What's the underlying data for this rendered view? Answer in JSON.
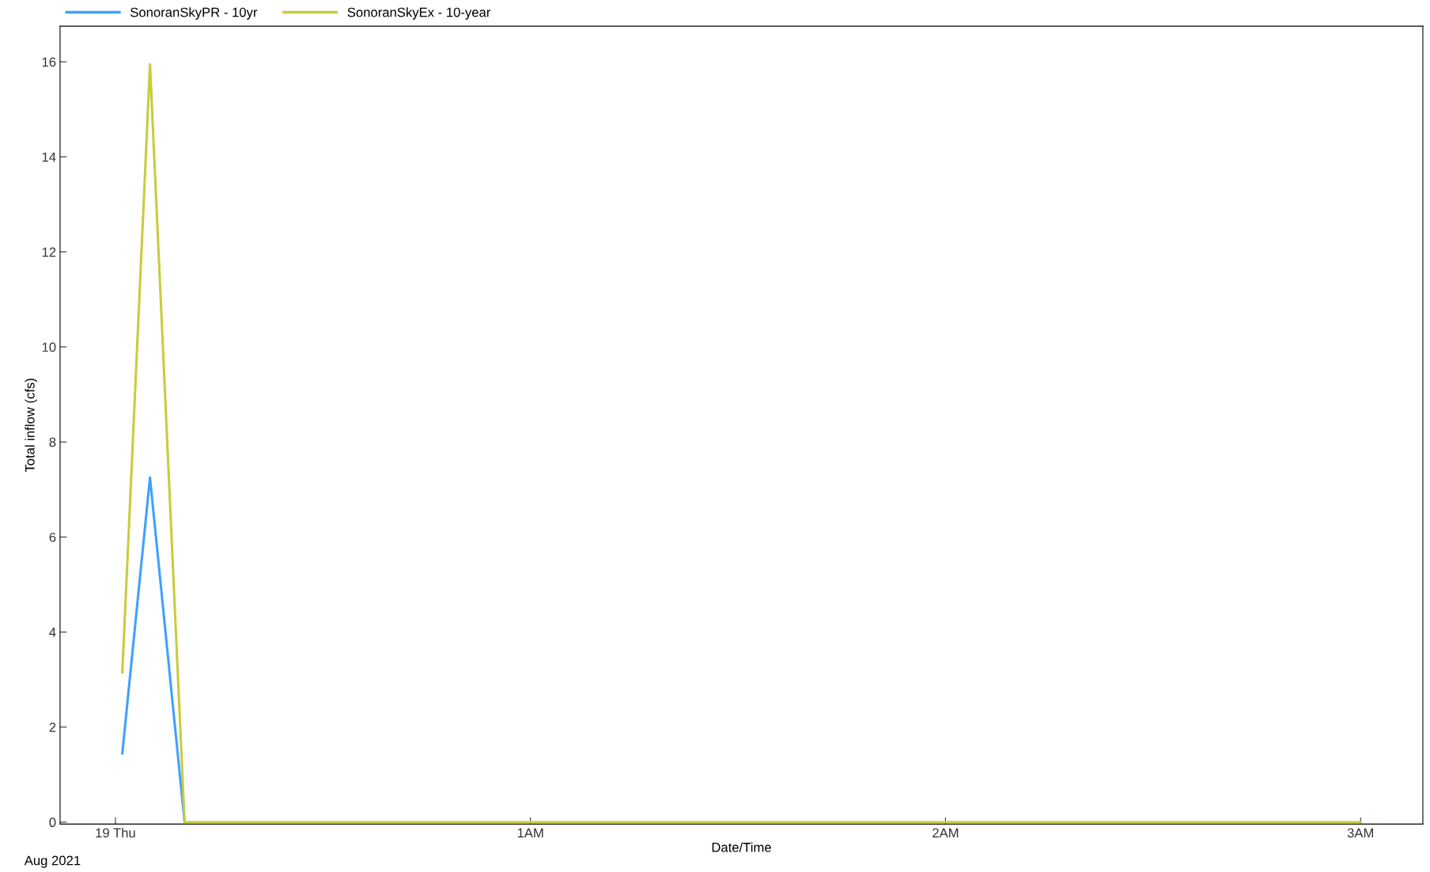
{
  "chart_data": {
    "type": "line",
    "xlabel": "Date/Time",
    "ylabel": "Total inflow (cfs)",
    "series": [
      {
        "name": "SonoranSkyPR - 10yr",
        "color": "#3fa0ff",
        "x": [
          "2021-08-19T00:01",
          "2021-08-19T00:05",
          "2021-08-19T00:10"
        ],
        "values": [
          1.45,
          7.25,
          0
        ]
      },
      {
        "name": "SonoranSkyEx - 10-year",
        "color": "#c8cc3c",
        "x": [
          "2021-08-19T00:01",
          "2021-08-19T00:05",
          "2021-08-19T00:10",
          "2021-08-19T03:00"
        ],
        "values": [
          3.15,
          15.95,
          0,
          0
        ]
      }
    ],
    "xlim": [
      "2021-08-18T23:52",
      "2021-08-19T03:09"
    ],
    "xticks": [
      {
        "value": "2021-08-19T00:00",
        "label": "19 Thu"
      },
      {
        "value": "2021-08-19T01:00",
        "label": "1AM"
      },
      {
        "value": "2021-08-19T02:00",
        "label": "2AM"
      },
      {
        "value": "2021-08-19T03:00",
        "label": "3AM"
      }
    ],
    "ylim": [
      -0.04,
      16.75
    ],
    "yticks": [
      0,
      2,
      4,
      6,
      8,
      10,
      12,
      14,
      16
    ],
    "annotations": [
      "Aug 2021"
    ],
    "grid": false,
    "legend": "top left",
    "marker": "none",
    "line_style": "solid"
  }
}
